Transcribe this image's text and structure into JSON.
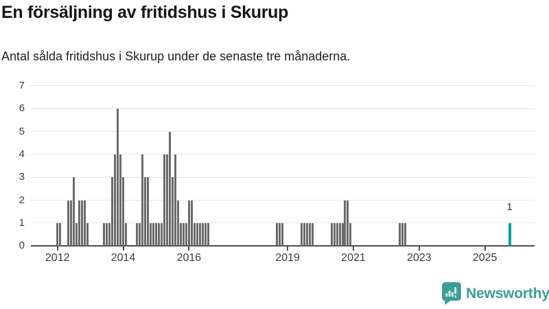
{
  "chart_data": {
    "type": "bar",
    "title": "En försäljning av fritidshus i Skurup",
    "subtitle": "Antal sålda fritidshus i Skurup under de senaste tre månaderna.",
    "xlabel": "",
    "ylabel": "",
    "ylim": [
      0,
      7
    ],
    "yticks": [
      0,
      1,
      2,
      3,
      4,
      5,
      6,
      7
    ],
    "xticks": [
      "2012",
      "2014",
      "2016",
      "2019",
      "2021",
      "2023",
      "2025"
    ],
    "grid": true,
    "legend_position": "none",
    "bar_color": "#6b6b6b",
    "highlight_color": "#00a0a0",
    "points": [
      [
        "2012-01",
        1
      ],
      [
        "2012-02",
        1
      ],
      [
        "2012-05",
        2
      ],
      [
        "2012-06",
        2
      ],
      [
        "2012-07",
        3
      ],
      [
        "2012-08",
        1
      ],
      [
        "2012-09",
        2
      ],
      [
        "2012-10",
        2
      ],
      [
        "2012-11",
        2
      ],
      [
        "2012-12",
        1
      ],
      [
        "2013-06",
        1
      ],
      [
        "2013-07",
        1
      ],
      [
        "2013-08",
        1
      ],
      [
        "2013-09",
        3
      ],
      [
        "2013-10",
        4
      ],
      [
        "2013-11",
        6
      ],
      [
        "2013-12",
        4
      ],
      [
        "2014-01",
        3
      ],
      [
        "2014-02",
        1
      ],
      [
        "2014-06",
        1
      ],
      [
        "2014-07",
        1
      ],
      [
        "2014-08",
        4
      ],
      [
        "2014-09",
        3
      ],
      [
        "2014-10",
        3
      ],
      [
        "2014-11",
        1
      ],
      [
        "2014-12",
        1
      ],
      [
        "2015-01",
        1
      ],
      [
        "2015-02",
        1
      ],
      [
        "2015-03",
        1
      ],
      [
        "2015-04",
        4
      ],
      [
        "2015-05",
        4
      ],
      [
        "2015-06",
        5
      ],
      [
        "2015-07",
        3
      ],
      [
        "2015-08",
        4
      ],
      [
        "2015-09",
        2
      ],
      [
        "2015-10",
        1
      ],
      [
        "2015-11",
        1
      ],
      [
        "2015-12",
        1
      ],
      [
        "2016-01",
        2
      ],
      [
        "2016-02",
        2
      ],
      [
        "2016-03",
        1
      ],
      [
        "2016-04",
        1
      ],
      [
        "2016-05",
        1
      ],
      [
        "2016-06",
        1
      ],
      [
        "2016-07",
        1
      ],
      [
        "2016-08",
        1
      ],
      [
        "2018-09",
        1
      ],
      [
        "2018-10",
        1
      ],
      [
        "2018-11",
        1
      ],
      [
        "2019-06",
        1
      ],
      [
        "2019-07",
        1
      ],
      [
        "2019-08",
        1
      ],
      [
        "2019-09",
        1
      ],
      [
        "2019-10",
        1
      ],
      [
        "2020-05",
        1
      ],
      [
        "2020-06",
        1
      ],
      [
        "2020-07",
        1
      ],
      [
        "2020-08",
        1
      ],
      [
        "2020-09",
        1
      ],
      [
        "2020-10",
        2
      ],
      [
        "2020-11",
        2
      ],
      [
        "2020-12",
        1
      ],
      [
        "2022-06",
        1
      ],
      [
        "2022-07",
        1
      ],
      [
        "2022-08",
        1
      ]
    ],
    "highlight_point": [
      "2025-10",
      1
    ],
    "highlight_label": "1"
  },
  "branding": {
    "name": "Newsworthy"
  }
}
